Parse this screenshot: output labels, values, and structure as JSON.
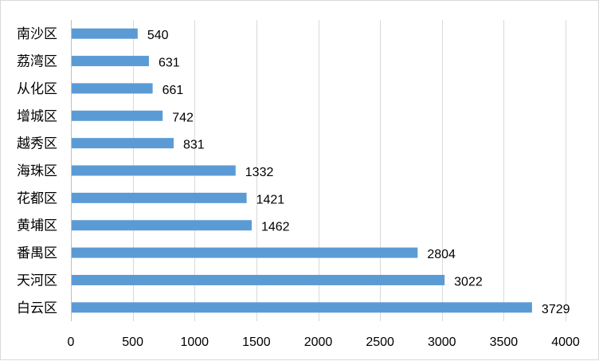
{
  "chart_data": {
    "type": "bar",
    "orientation": "horizontal",
    "title": "",
    "xlabel": "",
    "ylabel": "",
    "categories": [
      "南沙区",
      "荔湾区",
      "从化区",
      "增城区",
      "越秀区",
      "海珠区",
      "花都区",
      "黄埔区",
      "番禺区",
      "天河区",
      "白云区"
    ],
    "values": [
      540,
      631,
      661,
      742,
      831,
      1332,
      1421,
      1462,
      2804,
      3022,
      3729
    ],
    "xlim": [
      0,
      4000
    ],
    "xticks": [
      "0",
      "500",
      "1000",
      "1500",
      "2000",
      "2500",
      "3000",
      "3500",
      "4000"
    ],
    "grid": true,
    "legend": "none",
    "data_labels": true,
    "colors": {
      "bar": "#5b9bd5",
      "grid": "#d9d9d9",
      "axis": "#bfbfbf"
    }
  }
}
